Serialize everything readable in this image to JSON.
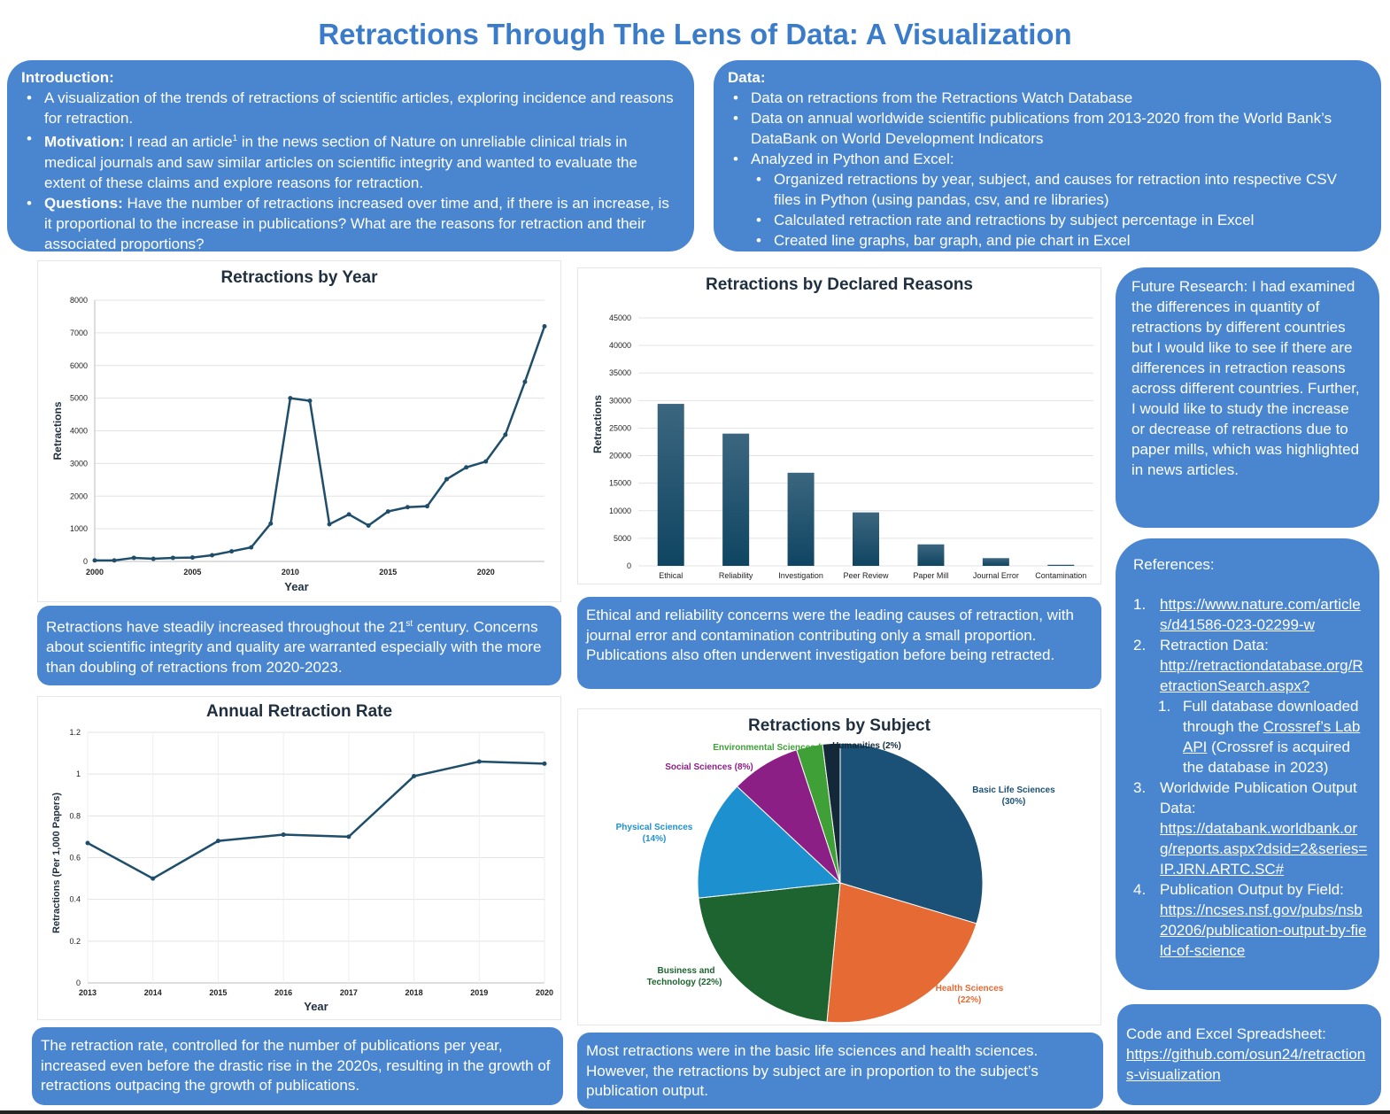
{
  "title": "Retractions Through The Lens of Data: A Visualization",
  "intro": {
    "heading": "Introduction:",
    "b1": "A visualization of the trends of retractions of scientific articles, exploring incidence and reasons for retraction.",
    "b2_label": "Motivation:",
    "b2_text_a": " I read an article",
    "b2_sup": "1",
    "b2_text_b": " in the news section of Nature on unreliable clinical trials in medical journals and saw similar articles on scientific integrity and wanted to evaluate the extent of  these claims and explore reasons for retraction.",
    "b3_label": "Questions:",
    "b3_text": " Have the number of retractions increased over time and, if there is an increase, is it proportional to the increase in publications? What are the reasons for retraction and their associated proportions?"
  },
  "data_panel": {
    "heading": "Data:",
    "b1": "Data on retractions from the Retractions Watch Database",
    "b2": "Data on annual worldwide scientific publications from 2013-2020 from the World Bank’s DataBank on World Development Indicators",
    "b3": "Analyzed in Python and Excel:",
    "s1": "Organized retractions by year, subject, and causes for retraction into respective CSV files in Python (using pandas, csv, and re libraries)",
    "s2": "Calculated retraction rate and retractions by subject percentage in Excel",
    "s3": "Created line graphs, bar graph, and pie chart in Excel"
  },
  "captions": {
    "year_a": "Retractions have steadily increased throughout the 21",
    "year_sup": "st",
    "year_b": " century. Concerns about scientific integrity and quality are warranted especially with the more than doubling of retractions from 2020-2023.",
    "reasons": "Ethical and reliability concerns were the leading causes of retraction, with journal error and contamination contributing only a small proportion. Publications also often underwent investigation before being retracted.",
    "rate": "The retraction rate, controlled for the number of publications per year, increased even before the drastic rise in the 2020s, resulting in the growth of retractions  outpacing the growth of publications.",
    "subject": "Most retractions were in the basic life sciences and health sciences. However, the  retractions by subject are in proportion to the subject’s publication output."
  },
  "future": "Future Research: I had examined the differences in quantity of retractions by different countries but I would like to see if there are differences in retraction reasons across different countries. Further, I would like to study the increase or decrease of retractions due to paper mills, which was highlighted in news articles.",
  "references": {
    "heading": "References:",
    "r1_num": "1.",
    "r1_link": "https://www.nature.com/articles/d41586-023-02299-w",
    "r2_num": "2.",
    "r2_text": "Retraction Data:",
    "r2_link": "http://retractiondatabase.org/RetractionSearch.aspx?",
    "r2a_num": "1.",
    "r2a_text_a": "Full database downloaded through the ",
    "r2a_link": "Crossref’s Lab API",
    "r2a_text_b": " (Crossref is acquired the database in 2023)",
    "r3_num": "3.",
    "r3_text": "Worldwide Publication Output Data:",
    "r3_link": "https://databank.worldbank.org/reports.aspx?dsid=2&series=IP.JRN.ARTC.SC#",
    "r4_num": "4.",
    "r4_text": "Publication Output by Field:",
    "r4_link": "https://ncses.nsf.gov/pubs/nsb20206/publication-output-by-field-of-science"
  },
  "code": {
    "label": "Code and Excel Spreadsheet:",
    "link": "https://github.com/osun24/retractions-visualization"
  },
  "colors": {
    "panel": "#4a86cf",
    "title": "#3a7cc9",
    "line": "#1f4e6b"
  },
  "chart_data": [
    {
      "id": "by_year",
      "type": "line",
      "title": "Retractions by Year",
      "xlabel": "Year",
      "ylabel": "Retractions",
      "xlim": [
        2000,
        2023
      ],
      "ylim": [
        0,
        8000
      ],
      "yticks": [
        0,
        1000,
        2000,
        3000,
        4000,
        5000,
        6000,
        7000,
        8000
      ],
      "xticks": [
        2000,
        2005,
        2010,
        2015,
        2020
      ],
      "grid": "horizontal",
      "x": [
        2000,
        2001,
        2002,
        2003,
        2004,
        2005,
        2006,
        2007,
        2008,
        2009,
        2010,
        2011,
        2012,
        2013,
        2014,
        2015,
        2016,
        2017,
        2018,
        2019,
        2020,
        2021,
        2022,
        2023
      ],
      "y": [
        30,
        30,
        110,
        80,
        110,
        120,
        190,
        310,
        430,
        1160,
        5000,
        4920,
        1140,
        1440,
        1100,
        1530,
        1660,
        1690,
        2520,
        2880,
        3060,
        3880,
        5500,
        7200
      ]
    },
    {
      "id": "by_reason",
      "type": "bar",
      "title": "Retractions by Declared Reasons",
      "xlabel": "",
      "ylabel": "Retractions",
      "ylim": [
        0,
        45000
      ],
      "yticks": [
        0,
        5000,
        10000,
        15000,
        20000,
        25000,
        30000,
        35000,
        40000,
        45000
      ],
      "grid": "horizontal",
      "categories": [
        "Ethical",
        "Reliability",
        "Investigation",
        "Peer Review",
        "Paper Mill",
        "Journal Error",
        "Contamination"
      ],
      "values": [
        29400,
        24000,
        16900,
        9700,
        3900,
        1400,
        200
      ]
    },
    {
      "id": "rate",
      "type": "line",
      "title": "Annual Retraction Rate",
      "xlabel": "Year",
      "ylabel": "Retractions (Per 1,000 Papers)",
      "ylim": [
        0,
        1.2
      ],
      "yticks": [
        0,
        0.2,
        0.4,
        0.6,
        0.8,
        1,
        1.2
      ],
      "grid": "horizontal",
      "x": [
        2013,
        2014,
        2015,
        2016,
        2017,
        2018,
        2019,
        2020
      ],
      "y": [
        0.67,
        0.5,
        0.68,
        0.71,
        0.7,
        0.99,
        1.06,
        1.05
      ]
    },
    {
      "id": "by_subject",
      "type": "pie",
      "title": "Retractions by Subject",
      "slices": [
        {
          "label": "Basic Life Sciences",
          "pct_label": "(30%)",
          "value": 30,
          "color": "#1b5176"
        },
        {
          "label": "Health Sciences",
          "pct_label": "(22%)",
          "value": 22,
          "color": "#e56a34"
        },
        {
          "label": "Business and Technology",
          "pct_label": "(22%)",
          "value": 22,
          "color": "#1d6430"
        },
        {
          "label": "Physical Sciences",
          "pct_label": "(14%)",
          "value": 14,
          "color": "#1d90d0"
        },
        {
          "label": "Social Sciences",
          "pct_label": "(8%)",
          "value": 8,
          "color": "#8c1f86"
        },
        {
          "label": "Environmental Sciences",
          "pct_label": "(3%)",
          "value": 3,
          "color": "#3fa037"
        },
        {
          "label": "Humanities",
          "pct_label": "(2%)",
          "value": 2,
          "color": "#13293a"
        }
      ]
    }
  ]
}
